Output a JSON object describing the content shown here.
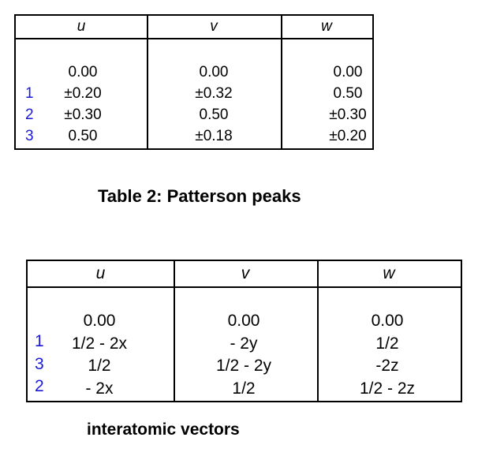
{
  "table1": {
    "headers": [
      "u",
      "v",
      "w"
    ],
    "row_numbers": [
      "1",
      "2",
      "3"
    ],
    "columns": [
      [
        "0.00",
        "±0.20",
        "±0.30",
        "0.50"
      ],
      [
        "0.00",
        "±0.32",
        "0.50",
        "±0.18"
      ],
      [
        "0.00",
        "0.50",
        "±0.30",
        "±0.20"
      ]
    ]
  },
  "caption1": "Table 2: Patterson peaks",
  "table2": {
    "headers": [
      "u",
      "v",
      "w"
    ],
    "row_numbers": [
      "1",
      "3",
      "2"
    ],
    "columns": [
      [
        "0.00",
        "1/2 - 2x",
        "1/2",
        "- 2x"
      ],
      [
        "0.00",
        "- 2y",
        "1/2 - 2y",
        "1/2"
      ],
      [
        "0.00",
        "1/2",
        "-2z",
        "1/2 - 2z"
      ]
    ]
  },
  "caption2": "interatomic vectors",
  "colors": {
    "row_number": "#1a1ad6",
    "text": "#000000",
    "border": "#000000"
  }
}
